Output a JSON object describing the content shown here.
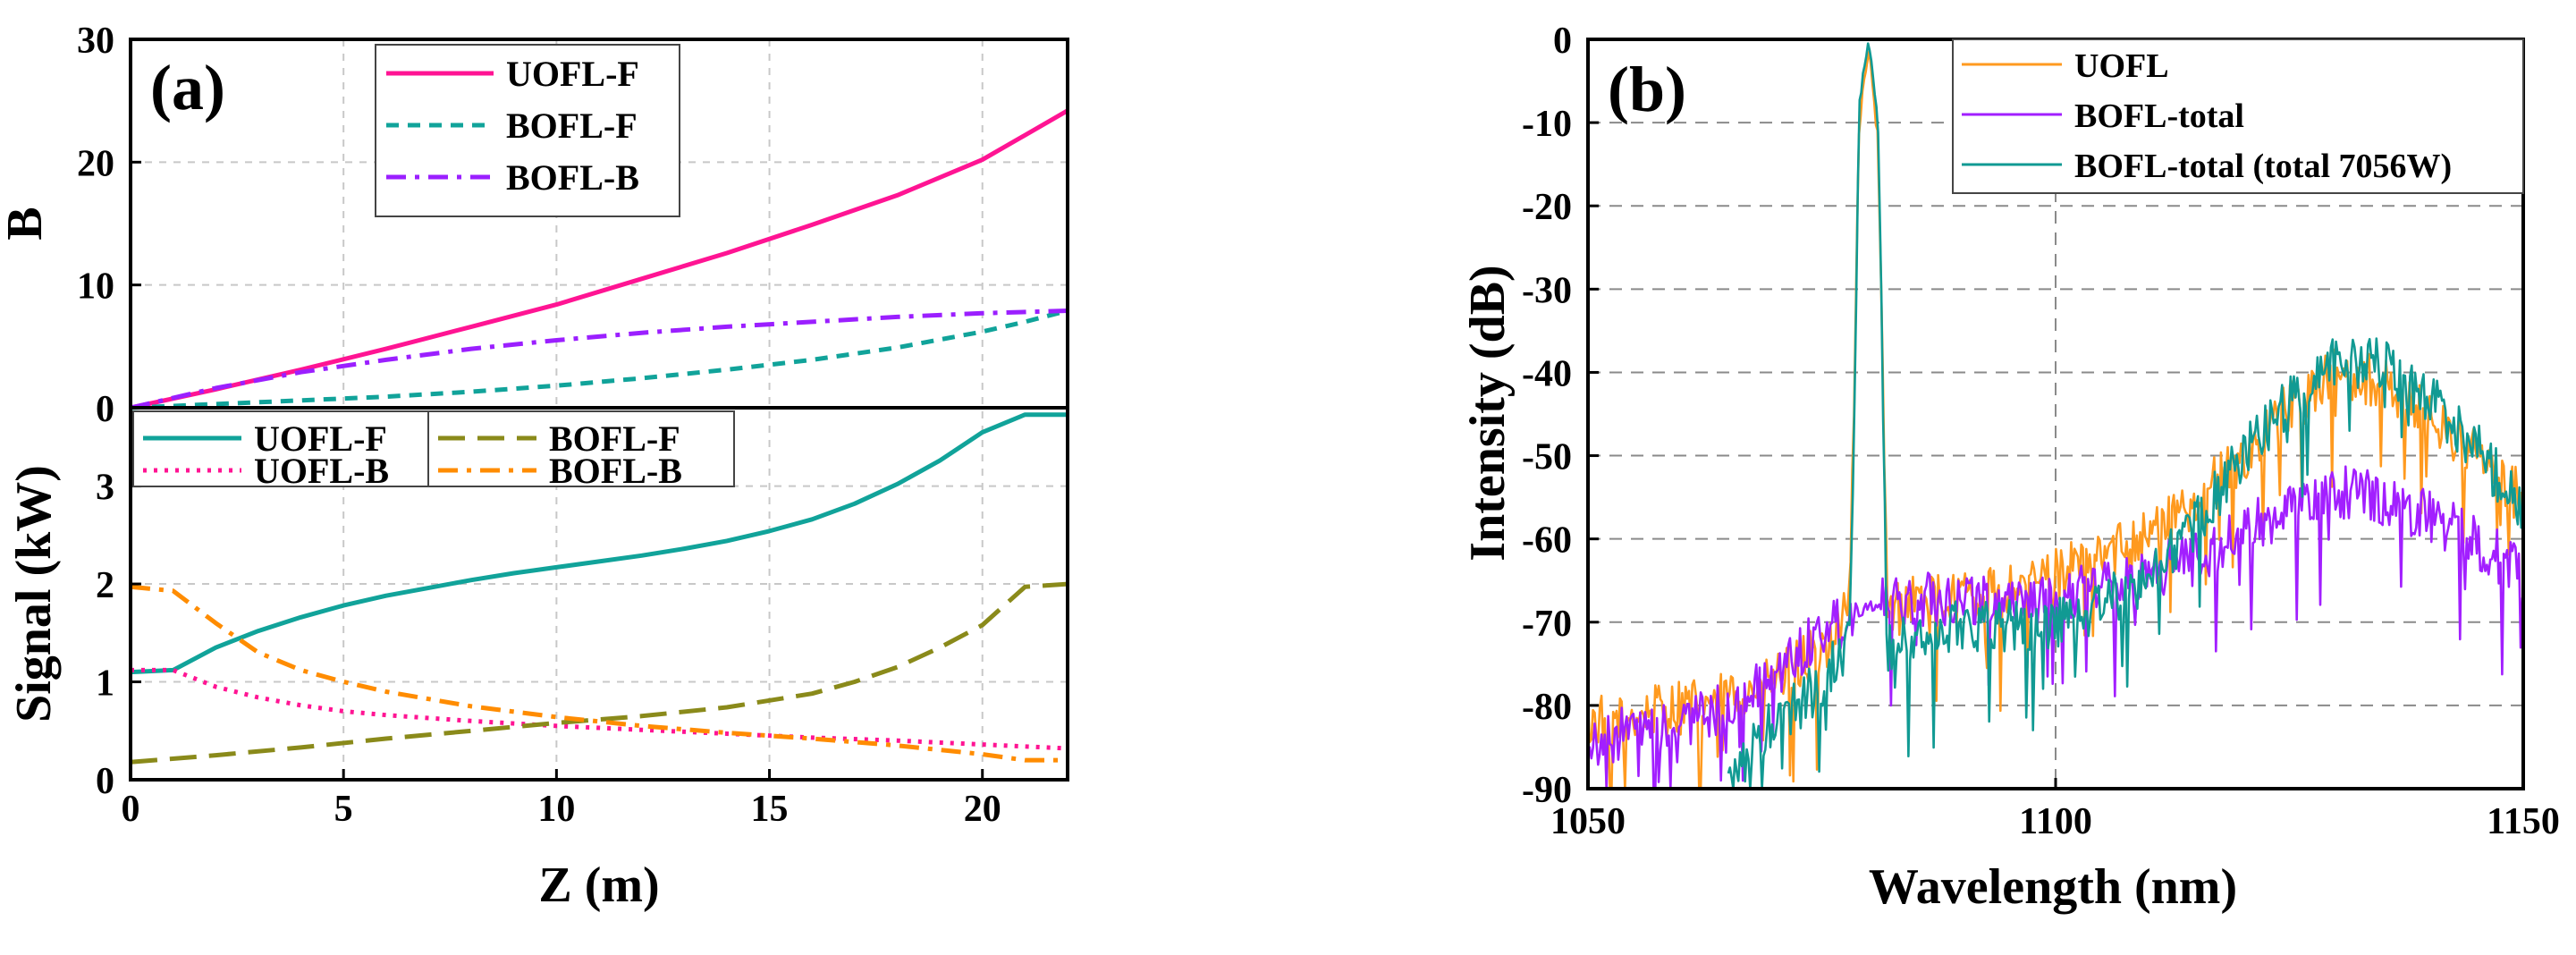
{
  "panels": {
    "a": {
      "label": "(a)",
      "xlabel": "Z (m)",
      "top_ylabel": "B",
      "bottom_ylabel": "Signal (kW)"
    },
    "b": {
      "label": "(b)",
      "xlabel": "Wavelength (nm)",
      "ylabel": "Intensity (dB)"
    }
  },
  "chart_data": [
    {
      "type": "line",
      "panel": "(a) top",
      "xlabel": "Z (m)",
      "ylabel": "B",
      "xlim": [
        0,
        22
      ],
      "ylim": [
        0,
        30
      ],
      "xticks": [
        "0",
        "5",
        "10",
        "15",
        "20"
      ],
      "yticks": [
        "0",
        "10",
        "20",
        "30"
      ],
      "grid": true,
      "legend_position": "top-center",
      "series": [
        {
          "name": "UOFL-F",
          "color": "#ff1493",
          "dash": "solid",
          "x": [
            0,
            2,
            4,
            6,
            8,
            10,
            12,
            14,
            16,
            18,
            20,
            22
          ],
          "y": [
            0,
            1.5,
            3.1,
            4.8,
            6.6,
            8.4,
            10.5,
            12.6,
            14.9,
            17.3,
            20.2,
            24.2
          ]
        },
        {
          "name": "BOFL-F",
          "color": "#11a39a",
          "dash": "dashed",
          "x": [
            0,
            2,
            4,
            6,
            8,
            10,
            12,
            14,
            16,
            18,
            20,
            21,
            22
          ],
          "y": [
            0,
            0.3,
            0.6,
            0.9,
            1.3,
            1.8,
            2.4,
            3.1,
            3.9,
            4.9,
            6.2,
            7.0,
            7.9
          ]
        },
        {
          "name": "BOFL-B",
          "color": "#9b1fff",
          "dash": "dashdot",
          "x": [
            0,
            2,
            4,
            6,
            8,
            10,
            12,
            14,
            16,
            18,
            20,
            22
          ],
          "y": [
            0,
            1.6,
            2.9,
            3.9,
            4.8,
            5.5,
            6.1,
            6.6,
            7.0,
            7.4,
            7.7,
            7.9
          ]
        }
      ]
    },
    {
      "type": "line",
      "panel": "(a) bottom",
      "xlabel": "Z (m)",
      "ylabel": "Signal (kW)",
      "xlim": [
        0,
        22
      ],
      "ylim": [
        0,
        3.8
      ],
      "xticks": [
        "0",
        "5",
        "10",
        "15",
        "20"
      ],
      "yticks": [
        "0",
        "1",
        "2",
        "3"
      ],
      "grid": true,
      "legend_position": "top",
      "series": [
        {
          "name": "UOFL-F",
          "color": "#11a39a",
          "dash": "solid",
          "x": [
            0,
            1,
            2,
            3,
            4,
            5,
            6,
            7,
            8,
            9,
            10,
            11,
            12,
            13,
            14,
            15,
            16,
            17,
            18,
            19,
            20,
            21,
            22
          ],
          "y": [
            1.1,
            1.12,
            1.35,
            1.52,
            1.66,
            1.78,
            1.88,
            1.96,
            2.04,
            2.11,
            2.17,
            2.23,
            2.29,
            2.36,
            2.44,
            2.54,
            2.66,
            2.82,
            3.02,
            3.26,
            3.55,
            3.73,
            3.73
          ]
        },
        {
          "name": "UOFL-B",
          "color": "#ff1493",
          "dash": "dotted",
          "x": [
            0,
            1,
            2,
            3,
            4,
            5,
            6,
            8,
            10,
            12,
            14,
            16,
            18,
            20,
            22
          ],
          "y": [
            1.12,
            1.12,
            0.95,
            0.84,
            0.76,
            0.7,
            0.66,
            0.6,
            0.55,
            0.51,
            0.47,
            0.43,
            0.4,
            0.36,
            0.32
          ]
        },
        {
          "name": "BOFL-F",
          "color": "#8a8a1a",
          "dash": "longdash",
          "x": [
            0,
            2,
            4,
            6,
            8,
            10,
            12,
            14,
            16,
            17,
            18,
            19,
            20,
            21,
            22
          ],
          "y": [
            0.18,
            0.25,
            0.33,
            0.42,
            0.5,
            0.58,
            0.65,
            0.74,
            0.88,
            1.0,
            1.15,
            1.35,
            1.58,
            1.97,
            2.0
          ]
        },
        {
          "name": "BOFL-B",
          "color": "#ff8c00",
          "dash": "dashdot",
          "x": [
            0,
            1,
            2,
            3,
            4,
            5,
            6,
            8,
            10,
            12,
            14,
            16,
            18,
            20,
            21,
            22
          ],
          "y": [
            1.97,
            1.93,
            1.6,
            1.3,
            1.12,
            1.0,
            0.9,
            0.75,
            0.64,
            0.55,
            0.48,
            0.42,
            0.35,
            0.26,
            0.2,
            0.2
          ]
        }
      ]
    },
    {
      "type": "line",
      "panel": "(b)",
      "xlabel": "Wavelength (nm)",
      "ylabel": "Intensity (dB)",
      "xlim": [
        1050,
        1150
      ],
      "ylim": [
        -90,
        0
      ],
      "xticks": [
        "1050",
        "1100",
        "1150"
      ],
      "yticks": [
        "0",
        "-10",
        "-20",
        "-30",
        "-40",
        "-50",
        "-60",
        "-70",
        "-80",
        "-90"
      ],
      "grid": true,
      "legend_position": "top-right",
      "series": [
        {
          "name": "UOFL",
          "color": "#ff9a1f",
          "x": [
            1050,
            1055,
            1060,
            1065,
            1070,
            1075,
            1078,
            1079,
            1080,
            1081,
            1082,
            1085,
            1090,
            1095,
            1100,
            1105,
            1110,
            1115,
            1120,
            1125,
            1130,
            1135,
            1140,
            1145,
            1150
          ],
          "y": [
            -82,
            -81,
            -80,
            -79,
            -77,
            -73,
            -68,
            -10,
            -1,
            -12,
            -69,
            -67,
            -67,
            -66,
            -64,
            -62,
            -59,
            -55,
            -50,
            -44,
            -40,
            -41,
            -45,
            -50,
            -55
          ]
        },
        {
          "name": "BOFL-total",
          "color": "#a21fff",
          "x": [
            1050,
            1055,
            1060,
            1065,
            1070,
            1075,
            1080,
            1085,
            1090,
            1095,
            1100,
            1105,
            1110,
            1115,
            1120,
            1125,
            1130,
            1135,
            1140,
            1145,
            1150
          ],
          "y": [
            -84,
            -83,
            -82,
            -80,
            -76,
            -71,
            -68,
            -67,
            -67,
            -67,
            -67,
            -65,
            -64,
            -62,
            -59,
            -56,
            -54,
            -55,
            -57,
            -60,
            -64
          ]
        },
        {
          "name": "BOFL-total (total 7056W)",
          "color": "#119a93",
          "x": [
            1065,
            1070,
            1075,
            1078,
            1079,
            1080,
            1081,
            1082,
            1085,
            1090,
            1095,
            1100,
            1105,
            1110,
            1115,
            1120,
            1125,
            1130,
            1135,
            1140,
            1145,
            1150
          ],
          "y": [
            -88,
            -82,
            -77,
            -72,
            -8,
            0,
            -10,
            -73,
            -72,
            -70,
            -70,
            -70,
            -68,
            -64,
            -58,
            -50,
            -43,
            -38,
            -39,
            -43,
            -49,
            -56
          ]
        }
      ]
    }
  ]
}
